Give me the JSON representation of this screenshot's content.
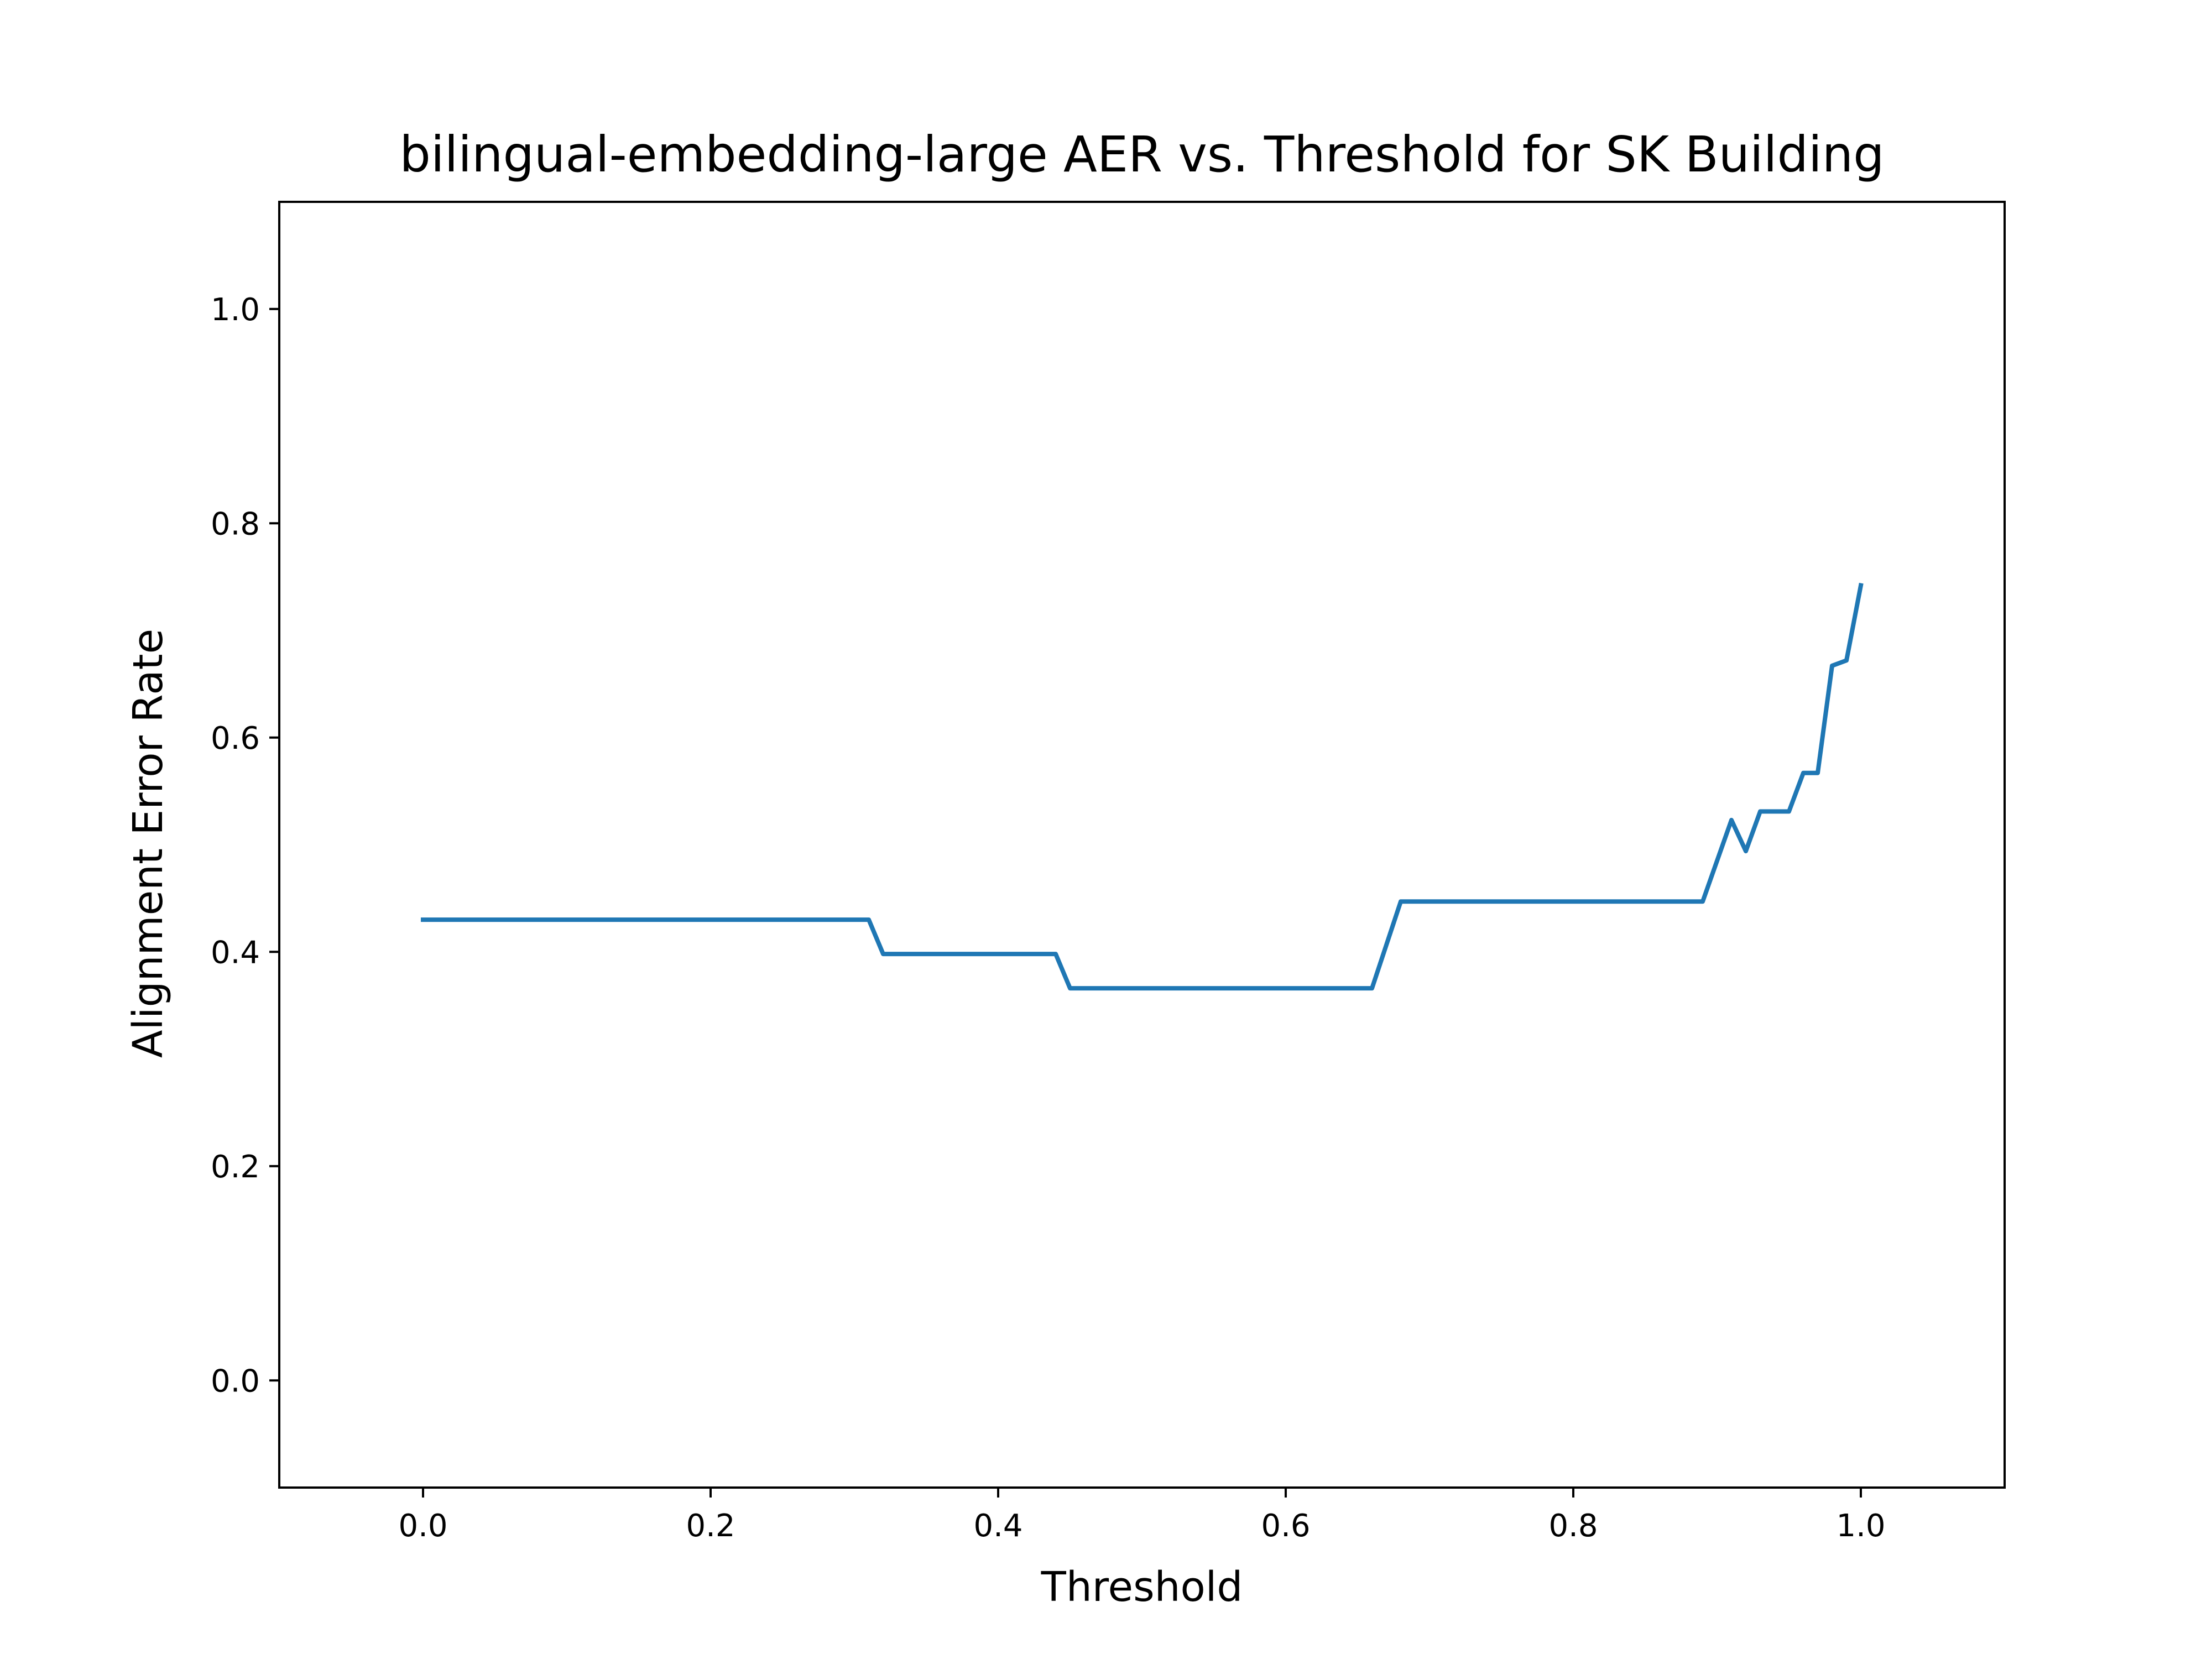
{
  "chart_data": {
    "type": "line",
    "title": "bilingual-embedding-large AER vs. Threshold for SK Building",
    "xlabel": "Threshold",
    "ylabel": "Alignment Error Rate",
    "xlim": [
      -0.1,
      1.1
    ],
    "ylim": [
      -0.1,
      1.1
    ],
    "xticks": [
      0.0,
      0.2,
      0.4,
      0.6,
      0.8,
      1.0
    ],
    "xtick_labels": [
      "0.0",
      "0.2",
      "0.4",
      "0.6",
      "0.8",
      "1.0"
    ],
    "yticks": [
      0.0,
      0.2,
      0.4,
      0.6,
      0.8,
      1.0
    ],
    "ytick_labels": [
      "0.0",
      "0.2",
      "0.4",
      "0.6",
      "0.8",
      "1.0"
    ],
    "grid": false,
    "series": [
      {
        "color": "#1f77b4",
        "x": [
          0.0,
          0.31,
          0.32,
          0.44,
          0.45,
          0.66,
          0.68,
          0.89,
          0.91,
          0.92,
          0.93,
          0.95,
          0.96,
          0.97,
          0.98,
          0.99,
          1.0
        ],
        "y": [
          0.43,
          0.43,
          0.398,
          0.398,
          0.366,
          0.366,
          0.447,
          0.447,
          0.523,
          0.494,
          0.531,
          0.531,
          0.567,
          0.567,
          0.667,
          0.672,
          0.742
        ]
      }
    ]
  }
}
